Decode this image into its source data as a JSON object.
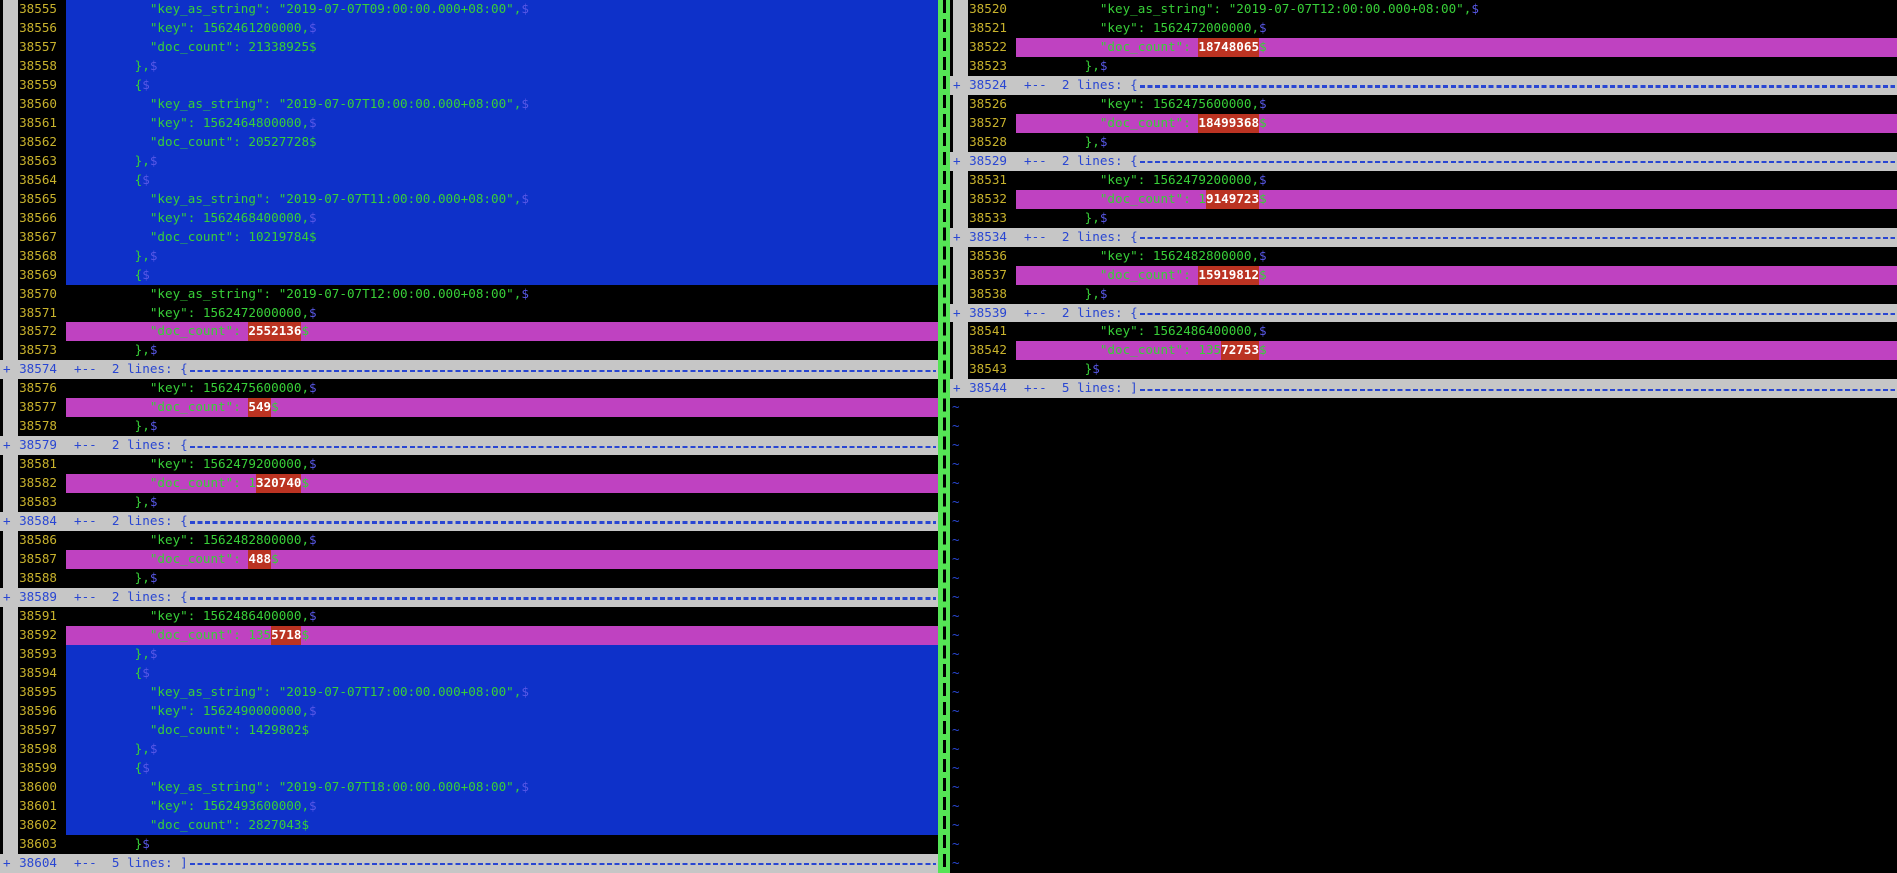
{
  "app": {
    "kind_label": "vimdiff split view"
  },
  "eol_marker": "$",
  "fold_plus": "+",
  "tilde_marker": "~",
  "colors": {
    "background": "#000000",
    "text_green": "#38cf38",
    "line_number_yellow": "#c8b22c",
    "fold_blue": "#2946d2",
    "eol_blue": "#5858e6",
    "diff_add_bg_blue": "#0e31c9",
    "diff_change_bg_magenta": "#bf42c1",
    "diff_text_bg_red": "#bb3322",
    "fold_bg_gray": "#c6c6c6",
    "separator_green": "#55e455",
    "highlight_text_white": "#ffffff"
  },
  "left_pane": {
    "rows": [
      {
        "type": "code",
        "num": "38555",
        "bg": "add",
        "pre": "          \"key_as_string\": \"2019-07-07T09:00:00.000+08:00\",",
        "eol_color": "blue"
      },
      {
        "type": "code",
        "num": "38556",
        "bg": "add",
        "pre": "          \"key\": 1562461200000,",
        "eol_color": "blue"
      },
      {
        "type": "code",
        "num": "38557",
        "bg": "add",
        "pre": "          \"doc_count\": 21338925",
        "eol_color": "green"
      },
      {
        "type": "code",
        "num": "38558",
        "bg": "add",
        "pre": "        },",
        "eol_color": "blue"
      },
      {
        "type": "code",
        "num": "38559",
        "bg": "add",
        "pre": "        {",
        "eol_color": "blue"
      },
      {
        "type": "code",
        "num": "38560",
        "bg": "add",
        "pre": "          \"key_as_string\": \"2019-07-07T10:00:00.000+08:00\",",
        "eol_color": "blue"
      },
      {
        "type": "code",
        "num": "38561",
        "bg": "add",
        "pre": "          \"key\": 1562464800000,",
        "eol_color": "blue"
      },
      {
        "type": "code",
        "num": "38562",
        "bg": "add",
        "pre": "          \"doc_count\": 20527728",
        "eol_color": "green"
      },
      {
        "type": "code",
        "num": "38563",
        "bg": "add",
        "pre": "        },",
        "eol_color": "blue"
      },
      {
        "type": "code",
        "num": "38564",
        "bg": "add",
        "pre": "        {",
        "eol_color": "blue"
      },
      {
        "type": "code",
        "num": "38565",
        "bg": "add",
        "pre": "          \"key_as_string\": \"2019-07-07T11:00:00.000+08:00\",",
        "eol_color": "blue"
      },
      {
        "type": "code",
        "num": "38566",
        "bg": "add",
        "pre": "          \"key\": 1562468400000,",
        "eol_color": "blue"
      },
      {
        "type": "code",
        "num": "38567",
        "bg": "add",
        "pre": "          \"doc_count\": 10219784",
        "eol_color": "green"
      },
      {
        "type": "code",
        "num": "38568",
        "bg": "add",
        "pre": "        },",
        "eol_color": "blue"
      },
      {
        "type": "code",
        "num": "38569",
        "bg": "add",
        "pre": "        {",
        "eol_color": "blue"
      },
      {
        "type": "code",
        "num": "38570",
        "bg": "plain",
        "pre": "          \"key_as_string\": \"2019-07-07T12:00:00.000+08:00\",",
        "eol_color": "blue"
      },
      {
        "type": "code",
        "num": "38571",
        "bg": "plain",
        "pre": "          \"key\": 1562472000000,",
        "eol_color": "blue"
      },
      {
        "type": "code",
        "num": "38572",
        "bg": "change",
        "pre": "          \"doc_count\": ",
        "hl": "2552136",
        "eol_color": "green"
      },
      {
        "type": "code",
        "num": "38573",
        "bg": "plain",
        "pre": "        },",
        "eol_color": "blue"
      },
      {
        "type": "fold",
        "num": "38574",
        "label": "+--  2 lines: {"
      },
      {
        "type": "code",
        "num": "38576",
        "bg": "plain",
        "pre": "          \"key\": 1562475600000,",
        "eol_color": "blue"
      },
      {
        "type": "code",
        "num": "38577",
        "bg": "change",
        "pre": "          \"doc_count\": ",
        "hl": "549",
        "eol_color": "green"
      },
      {
        "type": "code",
        "num": "38578",
        "bg": "plain",
        "pre": "        },",
        "eol_color": "blue"
      },
      {
        "type": "fold",
        "num": "38579",
        "label": "+--  2 lines: {"
      },
      {
        "type": "code",
        "num": "38581",
        "bg": "plain",
        "pre": "          \"key\": 1562479200000,",
        "eol_color": "blue"
      },
      {
        "type": "code",
        "num": "38582",
        "bg": "change",
        "pre": "          \"doc_count\": 1",
        "hl": "320740",
        "eol_color": "green"
      },
      {
        "type": "code",
        "num": "38583",
        "bg": "plain",
        "pre": "        },",
        "eol_color": "blue"
      },
      {
        "type": "fold",
        "num": "38584",
        "label": "+--  2 lines: {"
      },
      {
        "type": "code",
        "num": "38586",
        "bg": "plain",
        "pre": "          \"key\": 1562482800000,",
        "eol_color": "blue"
      },
      {
        "type": "code",
        "num": "38587",
        "bg": "change",
        "pre": "          \"doc_count\": ",
        "hl": "488",
        "eol_color": "green"
      },
      {
        "type": "code",
        "num": "38588",
        "bg": "plain",
        "pre": "        },",
        "eol_color": "blue"
      },
      {
        "type": "fold",
        "num": "38589",
        "label": "+--  2 lines: {"
      },
      {
        "type": "code",
        "num": "38591",
        "bg": "plain",
        "pre": "          \"key\": 1562486400000,",
        "eol_color": "blue"
      },
      {
        "type": "code",
        "num": "38592",
        "bg": "change",
        "pre": "          \"doc_count\": 135",
        "hl": "5718",
        "eol_color": "green"
      },
      {
        "type": "code",
        "num": "38593",
        "bg": "add",
        "pre": "        },",
        "eol_color": "blue"
      },
      {
        "type": "code",
        "num": "38594",
        "bg": "add",
        "pre": "        {",
        "eol_color": "blue"
      },
      {
        "type": "code",
        "num": "38595",
        "bg": "add",
        "pre": "          \"key_as_string\": \"2019-07-07T17:00:00.000+08:00\",",
        "eol_color": "blue"
      },
      {
        "type": "code",
        "num": "38596",
        "bg": "add",
        "pre": "          \"key\": 1562490000000,",
        "eol_color": "blue"
      },
      {
        "type": "code",
        "num": "38597",
        "bg": "add",
        "pre": "          \"doc_count\": 1429802",
        "eol_color": "green"
      },
      {
        "type": "code",
        "num": "38598",
        "bg": "add",
        "pre": "        },",
        "eol_color": "blue"
      },
      {
        "type": "code",
        "num": "38599",
        "bg": "add",
        "pre": "        {",
        "eol_color": "blue"
      },
      {
        "type": "code",
        "num": "38600",
        "bg": "add",
        "pre": "          \"key_as_string\": \"2019-07-07T18:00:00.000+08:00\",",
        "eol_color": "blue"
      },
      {
        "type": "code",
        "num": "38601",
        "bg": "add",
        "pre": "          \"key\": 1562493600000,",
        "eol_color": "blue"
      },
      {
        "type": "code",
        "num": "38602",
        "bg": "add",
        "pre": "          \"doc_count\": 2827043",
        "eol_color": "green"
      },
      {
        "type": "code",
        "num": "38603",
        "bg": "plain",
        "pre": "        }",
        "eol_color": "blue"
      },
      {
        "type": "fold",
        "num": "38604",
        "label": "+--  5 lines: ]"
      }
    ]
  },
  "right_pane": {
    "rows": [
      {
        "type": "code",
        "num": "38520",
        "bg": "plain",
        "pre": "          \"key_as_string\": \"2019-07-07T12:00:00.000+08:00\",",
        "eol_color": "blue"
      },
      {
        "type": "code",
        "num": "38521",
        "bg": "plain",
        "pre": "          \"key\": 1562472000000,",
        "eol_color": "blue"
      },
      {
        "type": "code",
        "num": "38522",
        "bg": "change",
        "pre": "          \"doc_count\": ",
        "hl": "18748065",
        "eol_color": "green"
      },
      {
        "type": "code",
        "num": "38523",
        "bg": "plain",
        "pre": "        },",
        "eol_color": "blue"
      },
      {
        "type": "fold",
        "num": "38524",
        "label": "+--  2 lines: {"
      },
      {
        "type": "code",
        "num": "38526",
        "bg": "plain",
        "pre": "          \"key\": 1562475600000,",
        "eol_color": "blue"
      },
      {
        "type": "code",
        "num": "38527",
        "bg": "change",
        "pre": "          \"doc_count\": ",
        "hl": "18499368",
        "eol_color": "green"
      },
      {
        "type": "code",
        "num": "38528",
        "bg": "plain",
        "pre": "        },",
        "eol_color": "blue"
      },
      {
        "type": "fold",
        "num": "38529",
        "label": "+--  2 lines: {"
      },
      {
        "type": "code",
        "num": "38531",
        "bg": "plain",
        "pre": "          \"key\": 1562479200000,",
        "eol_color": "blue"
      },
      {
        "type": "code",
        "num": "38532",
        "bg": "change",
        "pre": "          \"doc_count\": 1",
        "hl": "9149723",
        "eol_color": "green"
      },
      {
        "type": "code",
        "num": "38533",
        "bg": "plain",
        "pre": "        },",
        "eol_color": "blue"
      },
      {
        "type": "fold",
        "num": "38534",
        "label": "+--  2 lines: {"
      },
      {
        "type": "code",
        "num": "38536",
        "bg": "plain",
        "pre": "          \"key\": 1562482800000,",
        "eol_color": "blue"
      },
      {
        "type": "code",
        "num": "38537",
        "bg": "change",
        "pre": "          \"doc_count\": ",
        "hl": "15919812",
        "eol_color": "green"
      },
      {
        "type": "code",
        "num": "38538",
        "bg": "plain",
        "pre": "        },",
        "eol_color": "blue"
      },
      {
        "type": "fold",
        "num": "38539",
        "label": "+--  2 lines: {"
      },
      {
        "type": "code",
        "num": "38541",
        "bg": "plain",
        "pre": "          \"key\": 1562486400000,",
        "eol_color": "blue"
      },
      {
        "type": "code",
        "num": "38542",
        "bg": "change",
        "pre": "          \"doc_count\": 135",
        "hl": "72753",
        "eol_color": "green"
      },
      {
        "type": "code",
        "num": "38543",
        "bg": "plain",
        "pre": "        }",
        "eol_color": "blue"
      },
      {
        "type": "fold",
        "num": "38544",
        "label": "+--  5 lines: ]"
      },
      {
        "type": "tilde"
      },
      {
        "type": "tilde"
      },
      {
        "type": "tilde"
      },
      {
        "type": "tilde"
      },
      {
        "type": "tilde"
      },
      {
        "type": "tilde"
      },
      {
        "type": "tilde"
      },
      {
        "type": "tilde"
      },
      {
        "type": "tilde"
      },
      {
        "type": "tilde"
      },
      {
        "type": "tilde"
      },
      {
        "type": "tilde"
      },
      {
        "type": "tilde"
      },
      {
        "type": "tilde"
      },
      {
        "type": "tilde"
      },
      {
        "type": "tilde"
      },
      {
        "type": "tilde"
      },
      {
        "type": "tilde"
      },
      {
        "type": "tilde"
      },
      {
        "type": "tilde"
      },
      {
        "type": "tilde"
      },
      {
        "type": "tilde"
      },
      {
        "type": "tilde"
      },
      {
        "type": "tilde"
      },
      {
        "type": "tilde"
      }
    ]
  }
}
